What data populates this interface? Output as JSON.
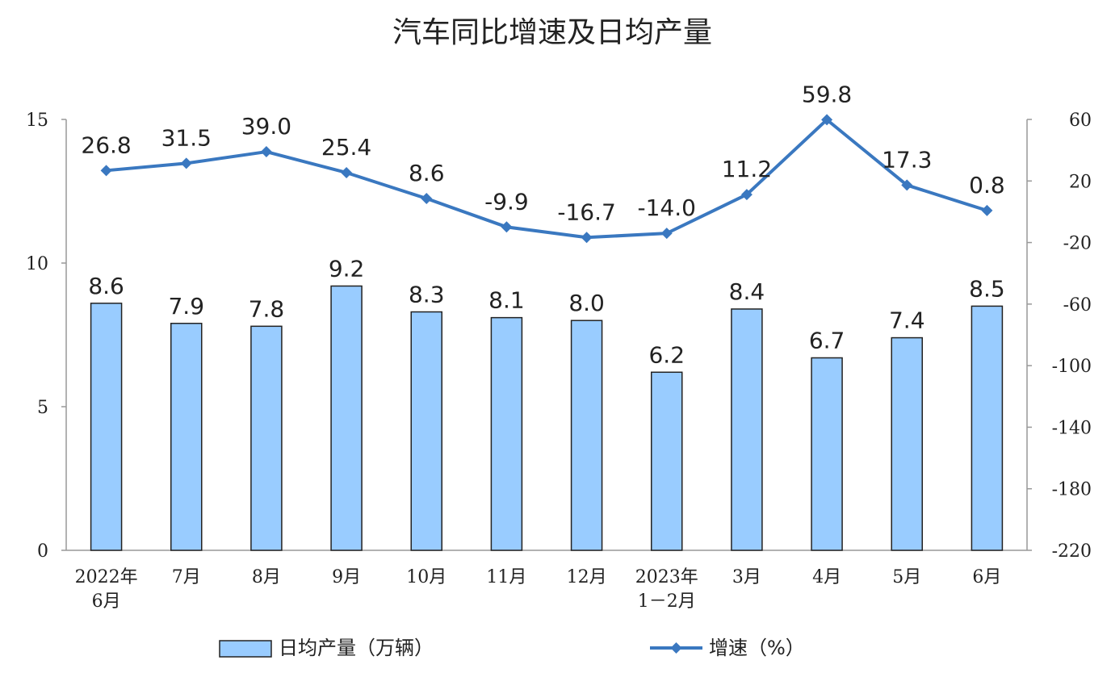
{
  "chart_data": {
    "type": "bar+line",
    "title": "汽车同比增速及日均产量",
    "categories": [
      [
        "2022年",
        "6月"
      ],
      [
        "7月"
      ],
      [
        "8月"
      ],
      [
        "9月"
      ],
      [
        "10月"
      ],
      [
        "11月"
      ],
      [
        "12月"
      ],
      [
        "2023年",
        "1－2月"
      ],
      [
        "3月"
      ],
      [
        "4月"
      ],
      [
        "5月"
      ],
      [
        "6月"
      ]
    ],
    "series": [
      {
        "name": "日均产量（万辆）",
        "type": "bar",
        "axis": "left",
        "color": "#99ccff",
        "values": [
          8.6,
          7.9,
          7.8,
          9.2,
          8.3,
          8.1,
          8.0,
          6.2,
          8.4,
          6.7,
          7.4,
          8.5
        ],
        "labels": [
          "8.6",
          "7.9",
          "7.8",
          "9.2",
          "8.3",
          "8.1",
          "8.0",
          "6.2",
          "8.4",
          "6.7",
          "7.4",
          "8.5"
        ]
      },
      {
        "name": "增速（%）",
        "type": "line",
        "axis": "right",
        "color": "#3a78c0",
        "values": [
          26.8,
          31.5,
          39.0,
          25.4,
          8.6,
          -9.9,
          -16.7,
          -14.0,
          11.2,
          59.8,
          17.3,
          0.8
        ],
        "labels": [
          "26.8",
          "31.5",
          "39.0",
          "25.4",
          "8.6",
          "-9.9",
          "-16.7",
          "-14.0",
          "11.2",
          "59.8",
          "17.3",
          "0.8"
        ]
      }
    ],
    "left_axis": {
      "min": 0,
      "max": 15,
      "ticks": [
        0,
        5,
        10,
        15
      ]
    },
    "right_axis": {
      "min": -220,
      "max": 60,
      "ticks": [
        60,
        20,
        -20,
        -60,
        -100,
        -140,
        -180,
        -220
      ]
    },
    "grid": false,
    "legend_position": "bottom"
  }
}
